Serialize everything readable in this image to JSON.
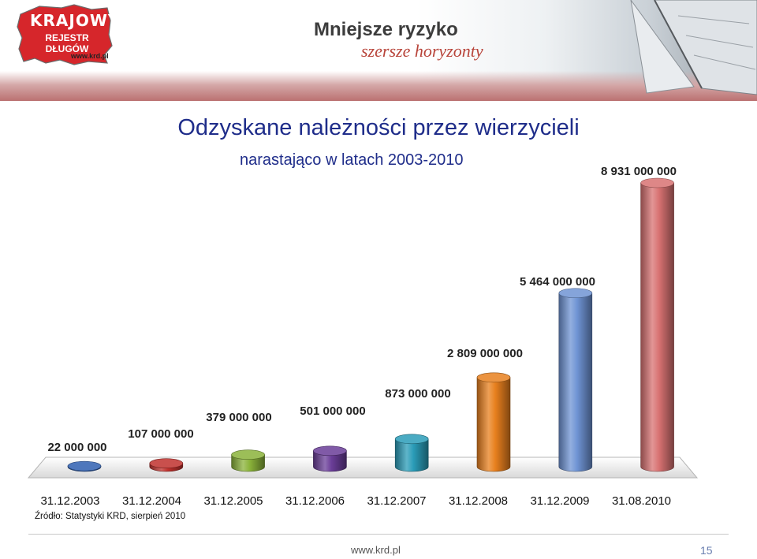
{
  "header": {
    "logo_line1": "KRAJOWY",
    "logo_line2": "REJESTR DŁUGÓW",
    "logo_site": "www.krd.pl",
    "slogan_line1": "Mniejsze ryzyko",
    "slogan_line2": "szersze horyzonty",
    "logo_color": "#d6262b"
  },
  "slide": {
    "source": "Źródło: Statystyki KRD, sierpień 2010",
    "site": "www.krd.pl",
    "page_number": "15"
  },
  "chart_data": {
    "type": "bar",
    "style": "3d-cylinder",
    "title": "Odzyskane należności przez wierzycieli",
    "subtitle": "narastająco w latach 2003-2010",
    "xlabel": "",
    "ylabel": "",
    "grid": false,
    "legend": "none",
    "categories": [
      "31.12.2003",
      "31.12.2004",
      "31.12.2005",
      "31.12.2006",
      "31.12.2007",
      "31.12.2008",
      "31.12.2009",
      "31.08.2010"
    ],
    "values": [
      22000000,
      107000000,
      379000000,
      501000000,
      873000000,
      2809000000,
      5464000000,
      8931000000
    ],
    "data_labels": [
      "22 000 000",
      "107 000 000",
      "379 000 000",
      "501 000 000",
      "873 000 000",
      "2 809 000 000",
      "5 464 000 000",
      "8 931 000 000"
    ],
    "colors": [
      "#2f5fb0",
      "#c0312d",
      "#8bb33a",
      "#6a3d98",
      "#2a9cb8",
      "#e8801e",
      "#6f94d4",
      "#d87272"
    ],
    "ylim": [
      0,
      8931000000
    ]
  }
}
